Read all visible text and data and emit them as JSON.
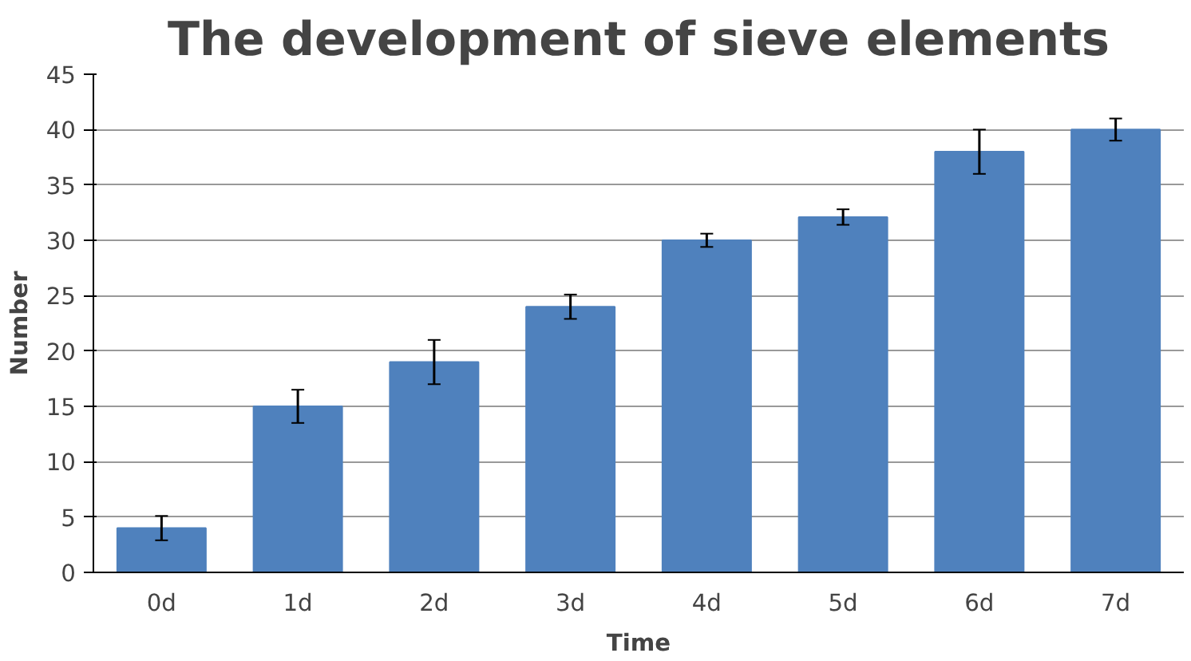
{
  "chart_data": {
    "type": "bar",
    "title": "The development of sieve elements",
    "xlabel": "Time",
    "ylabel": "Number",
    "categories": [
      "0d",
      "1d",
      "2d",
      "3d",
      "4d",
      "5d",
      "6d",
      "7d"
    ],
    "values": [
      4,
      15,
      19,
      24,
      30,
      32.1,
      38,
      40
    ],
    "errors": [
      1.1,
      1.5,
      2,
      1.1,
      0.6,
      0.7,
      2,
      1
    ],
    "color": "#4f81bd",
    "ylim": [
      0,
      45
    ],
    "yticks": [
      0,
      5,
      10,
      15,
      20,
      25,
      30,
      35,
      40,
      45
    ],
    "grid": "y"
  }
}
